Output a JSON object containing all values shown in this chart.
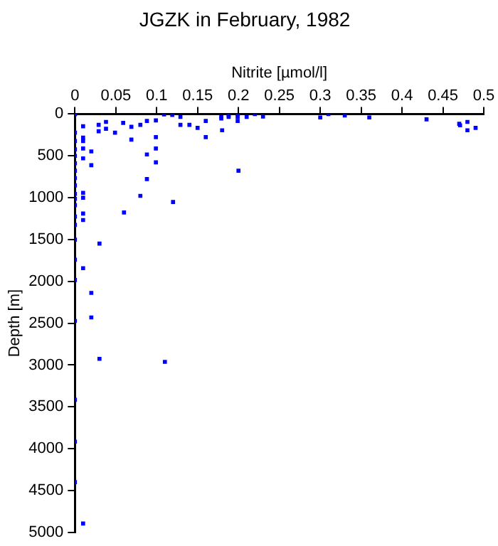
{
  "chart_data": {
    "type": "scatter",
    "title": "JGZK in February, 1982",
    "xlabel": "Nitrite [µmol/l]",
    "ylabel": "Depth [m]",
    "xlim": [
      0,
      0.5
    ],
    "xticks": [
      0,
      0.05,
      0.1,
      0.15,
      0.2,
      0.25,
      0.3,
      0.35,
      0.4,
      0.45,
      0.5
    ],
    "ylim": [
      5000,
      0
    ],
    "yticks": [
      0,
      500,
      1000,
      1500,
      2000,
      2500,
      3000,
      3500,
      4000,
      4500,
      5000
    ],
    "grid": false,
    "legend": false,
    "marker": "square",
    "series": [
      {
        "color": "#0000ff",
        "x": [
          0,
          0,
          0,
          0,
          0,
          0,
          0,
          0,
          0,
          0,
          0,
          0,
          0,
          0,
          0,
          0,
          0,
          0,
          0,
          0,
          0,
          0,
          0.01,
          0.01,
          0.01,
          0.01,
          0.01,
          0.01,
          0.01,
          0.01,
          0.01,
          0.01,
          0.01,
          0.02,
          0.02,
          0.02,
          0.02,
          0.029,
          0.029,
          0.03,
          0.03,
          0.038,
          0.038,
          0.049,
          0.059,
          0.06,
          0.069,
          0.069,
          0.08,
          0.08,
          0.088,
          0.088,
          0.088,
          0.099,
          0.099,
          0.099,
          0.099,
          0.109,
          0.11,
          0.119,
          0.12,
          0.129,
          0.129,
          0.14,
          0.15,
          0.16,
          0.16,
          0.179,
          0.179,
          0.18,
          0.188,
          0.188,
          0.199,
          0.199,
          0.199,
          0.2,
          0.21,
          0.22,
          0.23,
          0.3,
          0.31,
          0.33,
          0.36,
          0.43,
          0.47,
          0.471,
          0.48,
          0.48,
          0.49
        ],
        "values": [
          223,
          323,
          423,
          500,
          589,
          677,
          766,
          854,
          955,
          1014,
          1090,
          1225,
          1325,
          1502,
          1742,
          1984,
          2474,
          3416,
          3916,
          4400,
          0,
          0,
          147,
          282,
          323,
          412,
          530,
          942,
          1001,
          1190,
          1267,
          1843,
          4894,
          447,
          612,
          2138,
          2431,
          129,
          206,
          1548,
          2926,
          94,
          176,
          223,
          106,
          1177,
          153,
          306,
          129,
          978,
          82,
          483,
          777,
          76,
          276,
          412,
          577,
          5,
          2962,
          10,
          1051,
          35,
          129,
          129,
          165,
          82,
          276,
          35,
          53,
          194,
          12,
          35,
          0,
          35,
          82,
          677,
          35,
          0,
          29,
          41,
          0,
          18,
          41,
          64,
          117,
          135,
          94,
          194,
          165
        ]
      }
    ]
  }
}
